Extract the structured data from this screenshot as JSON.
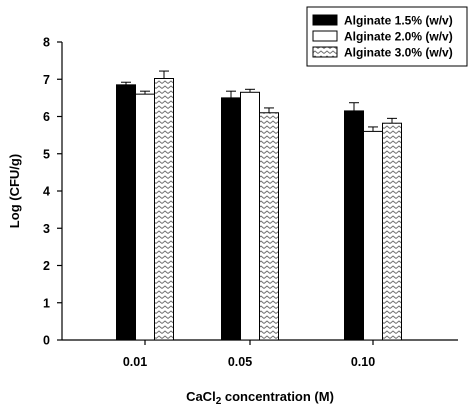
{
  "chart_data": {
    "type": "bar",
    "categories": [
      "0.01",
      "0.05",
      "0.10"
    ],
    "series": [
      {
        "name": "Alginate 1.5% (w/v)",
        "values": [
          6.85,
          6.5,
          6.15
        ],
        "errors": [
          0.07,
          0.18,
          0.22
        ],
        "fill": "solid-black"
      },
      {
        "name": "Alginate 2.0% (w/v)",
        "values": [
          6.6,
          6.65,
          5.6
        ],
        "errors": [
          0.08,
          0.08,
          0.12
        ],
        "fill": "white"
      },
      {
        "name": "Alginate 3.0% (w/v)",
        "values": [
          7.02,
          6.1,
          5.82
        ],
        "errors": [
          0.2,
          0.13,
          0.13
        ],
        "fill": "zigzag-hatch"
      }
    ],
    "xlabel_main": "CaCl",
    "xlabel_sub": "2",
    "xlabel_rest": " concentration (M)",
    "ylabel": "Log (CFU/g)",
    "ylim": [
      0,
      8
    ],
    "yticks": [
      "0",
      "1",
      "2",
      "3",
      "4",
      "5",
      "6",
      "7",
      "8"
    ],
    "grid": false,
    "legend_position": "top-right"
  }
}
